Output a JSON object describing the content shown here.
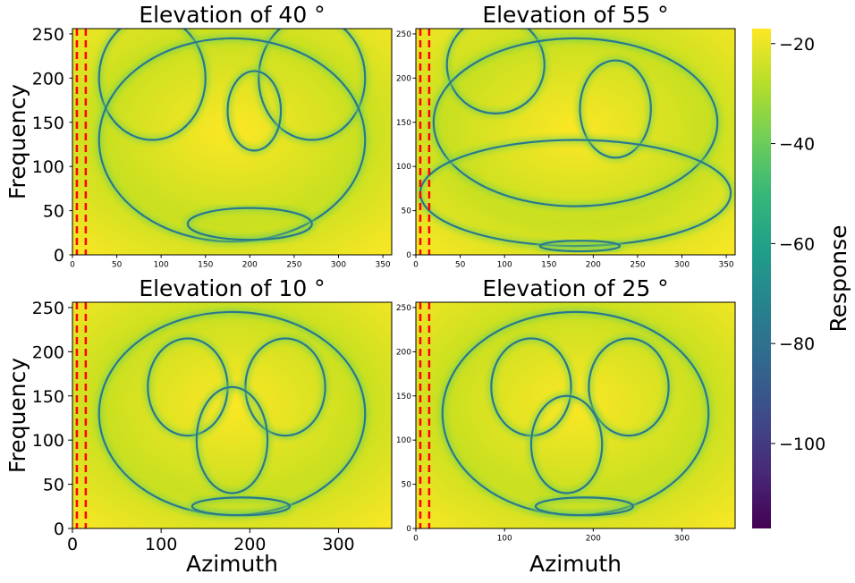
{
  "chart_data": [
    {
      "type": "heatmap",
      "title": "Elevation of 40 °",
      "xlabel": "",
      "ylabel": "Frequency",
      "xlim": [
        0,
        360
      ],
      "ylim": [
        0,
        256
      ],
      "x_ticks": [
        0,
        50,
        100,
        150,
        200,
        250,
        300,
        350
      ],
      "y_ticks": [
        0,
        50,
        100,
        150,
        200,
        250
      ],
      "tick_size": "small",
      "dashed_vlines_x": [
        5,
        15
      ],
      "contours": [
        {
          "cx": 90,
          "cy": 200,
          "rx": 60,
          "ry": 70
        },
        {
          "cx": 270,
          "cy": 200,
          "rx": 60,
          "ry": 70
        },
        {
          "cx": 205,
          "cy": 163,
          "rx": 30,
          "ry": 45
        },
        {
          "cx": 180,
          "cy": 130,
          "rx": 150,
          "ry": 115
        },
        {
          "cx": 200,
          "cy": 35,
          "rx": 70,
          "ry": 18
        }
      ]
    },
    {
      "type": "heatmap",
      "title": "Elevation of 55 °",
      "xlabel": "",
      "ylabel": "",
      "xlim": [
        0,
        360
      ],
      "ylim": [
        0,
        256
      ],
      "x_ticks": [
        0,
        50,
        100,
        150,
        200,
        250,
        300,
        350
      ],
      "y_ticks": [
        0,
        50,
        100,
        150,
        200,
        250
      ],
      "tick_size": "small",
      "dashed_vlines_x": [
        5,
        15
      ],
      "contours": [
        {
          "cx": 90,
          "cy": 215,
          "rx": 55,
          "ry": 55
        },
        {
          "cx": 225,
          "cy": 165,
          "rx": 40,
          "ry": 55
        },
        {
          "cx": 180,
          "cy": 150,
          "rx": 160,
          "ry": 95
        },
        {
          "cx": 180,
          "cy": 70,
          "rx": 175,
          "ry": 60
        },
        {
          "cx": 185,
          "cy": 10,
          "rx": 45,
          "ry": 6
        }
      ]
    },
    {
      "type": "heatmap",
      "title": "Elevation of 10 °",
      "xlabel": "Azimuth",
      "ylabel": "Frequency",
      "xlim": [
        0,
        360
      ],
      "ylim": [
        0,
        256
      ],
      "x_ticks": [
        0,
        100,
        200,
        300
      ],
      "y_ticks": [
        0,
        50,
        100,
        150,
        200,
        250
      ],
      "tick_size": "large",
      "dashed_vlines_x": [
        5,
        15
      ],
      "contours": [
        {
          "cx": 130,
          "cy": 160,
          "rx": 45,
          "ry": 55
        },
        {
          "cx": 240,
          "cy": 160,
          "rx": 45,
          "ry": 55
        },
        {
          "cx": 180,
          "cy": 100,
          "rx": 40,
          "ry": 60
        },
        {
          "cx": 180,
          "cy": 130,
          "rx": 150,
          "ry": 115
        },
        {
          "cx": 190,
          "cy": 25,
          "rx": 55,
          "ry": 10
        }
      ]
    },
    {
      "type": "heatmap",
      "title": "Elevation of 25 °",
      "xlabel": "Azimuth",
      "ylabel": "",
      "xlim": [
        0,
        360
      ],
      "ylim": [
        0,
        256
      ],
      "x_ticks": [
        0,
        100,
        200,
        300
      ],
      "y_ticks": [
        0,
        50,
        100,
        150,
        200,
        250
      ],
      "tick_size": "small",
      "dashed_vlines_x": [
        5,
        15
      ],
      "contours": [
        {
          "cx": 130,
          "cy": 160,
          "rx": 45,
          "ry": 55
        },
        {
          "cx": 240,
          "cy": 160,
          "rx": 45,
          "ry": 55
        },
        {
          "cx": 170,
          "cy": 95,
          "rx": 40,
          "ry": 55
        },
        {
          "cx": 180,
          "cy": 130,
          "rx": 150,
          "ry": 115
        },
        {
          "cx": 190,
          "cy": 25,
          "rx": 55,
          "ry": 10
        }
      ]
    }
  ],
  "colorbar": {
    "label": "Response",
    "colormap": "viridis",
    "range": [
      -117,
      -17
    ],
    "ticks": [
      -20,
      -40,
      -60,
      -80,
      -100
    ],
    "tick_labels": [
      "−20",
      "−40",
      "−60",
      "−80",
      "−100"
    ]
  },
  "colors": {
    "background": "#ffffff",
    "field": "#c8e020",
    "field_bright": "#fde725",
    "contour": "#2a788e",
    "contour_halo": "#7ad151",
    "dashed_line": "#ff0000",
    "viridis_stops": [
      "#440154",
      "#482878",
      "#3e4a89",
      "#31688e",
      "#26828e",
      "#1f9e89",
      "#35b779",
      "#6ece58",
      "#b5de2b",
      "#fde725"
    ]
  }
}
